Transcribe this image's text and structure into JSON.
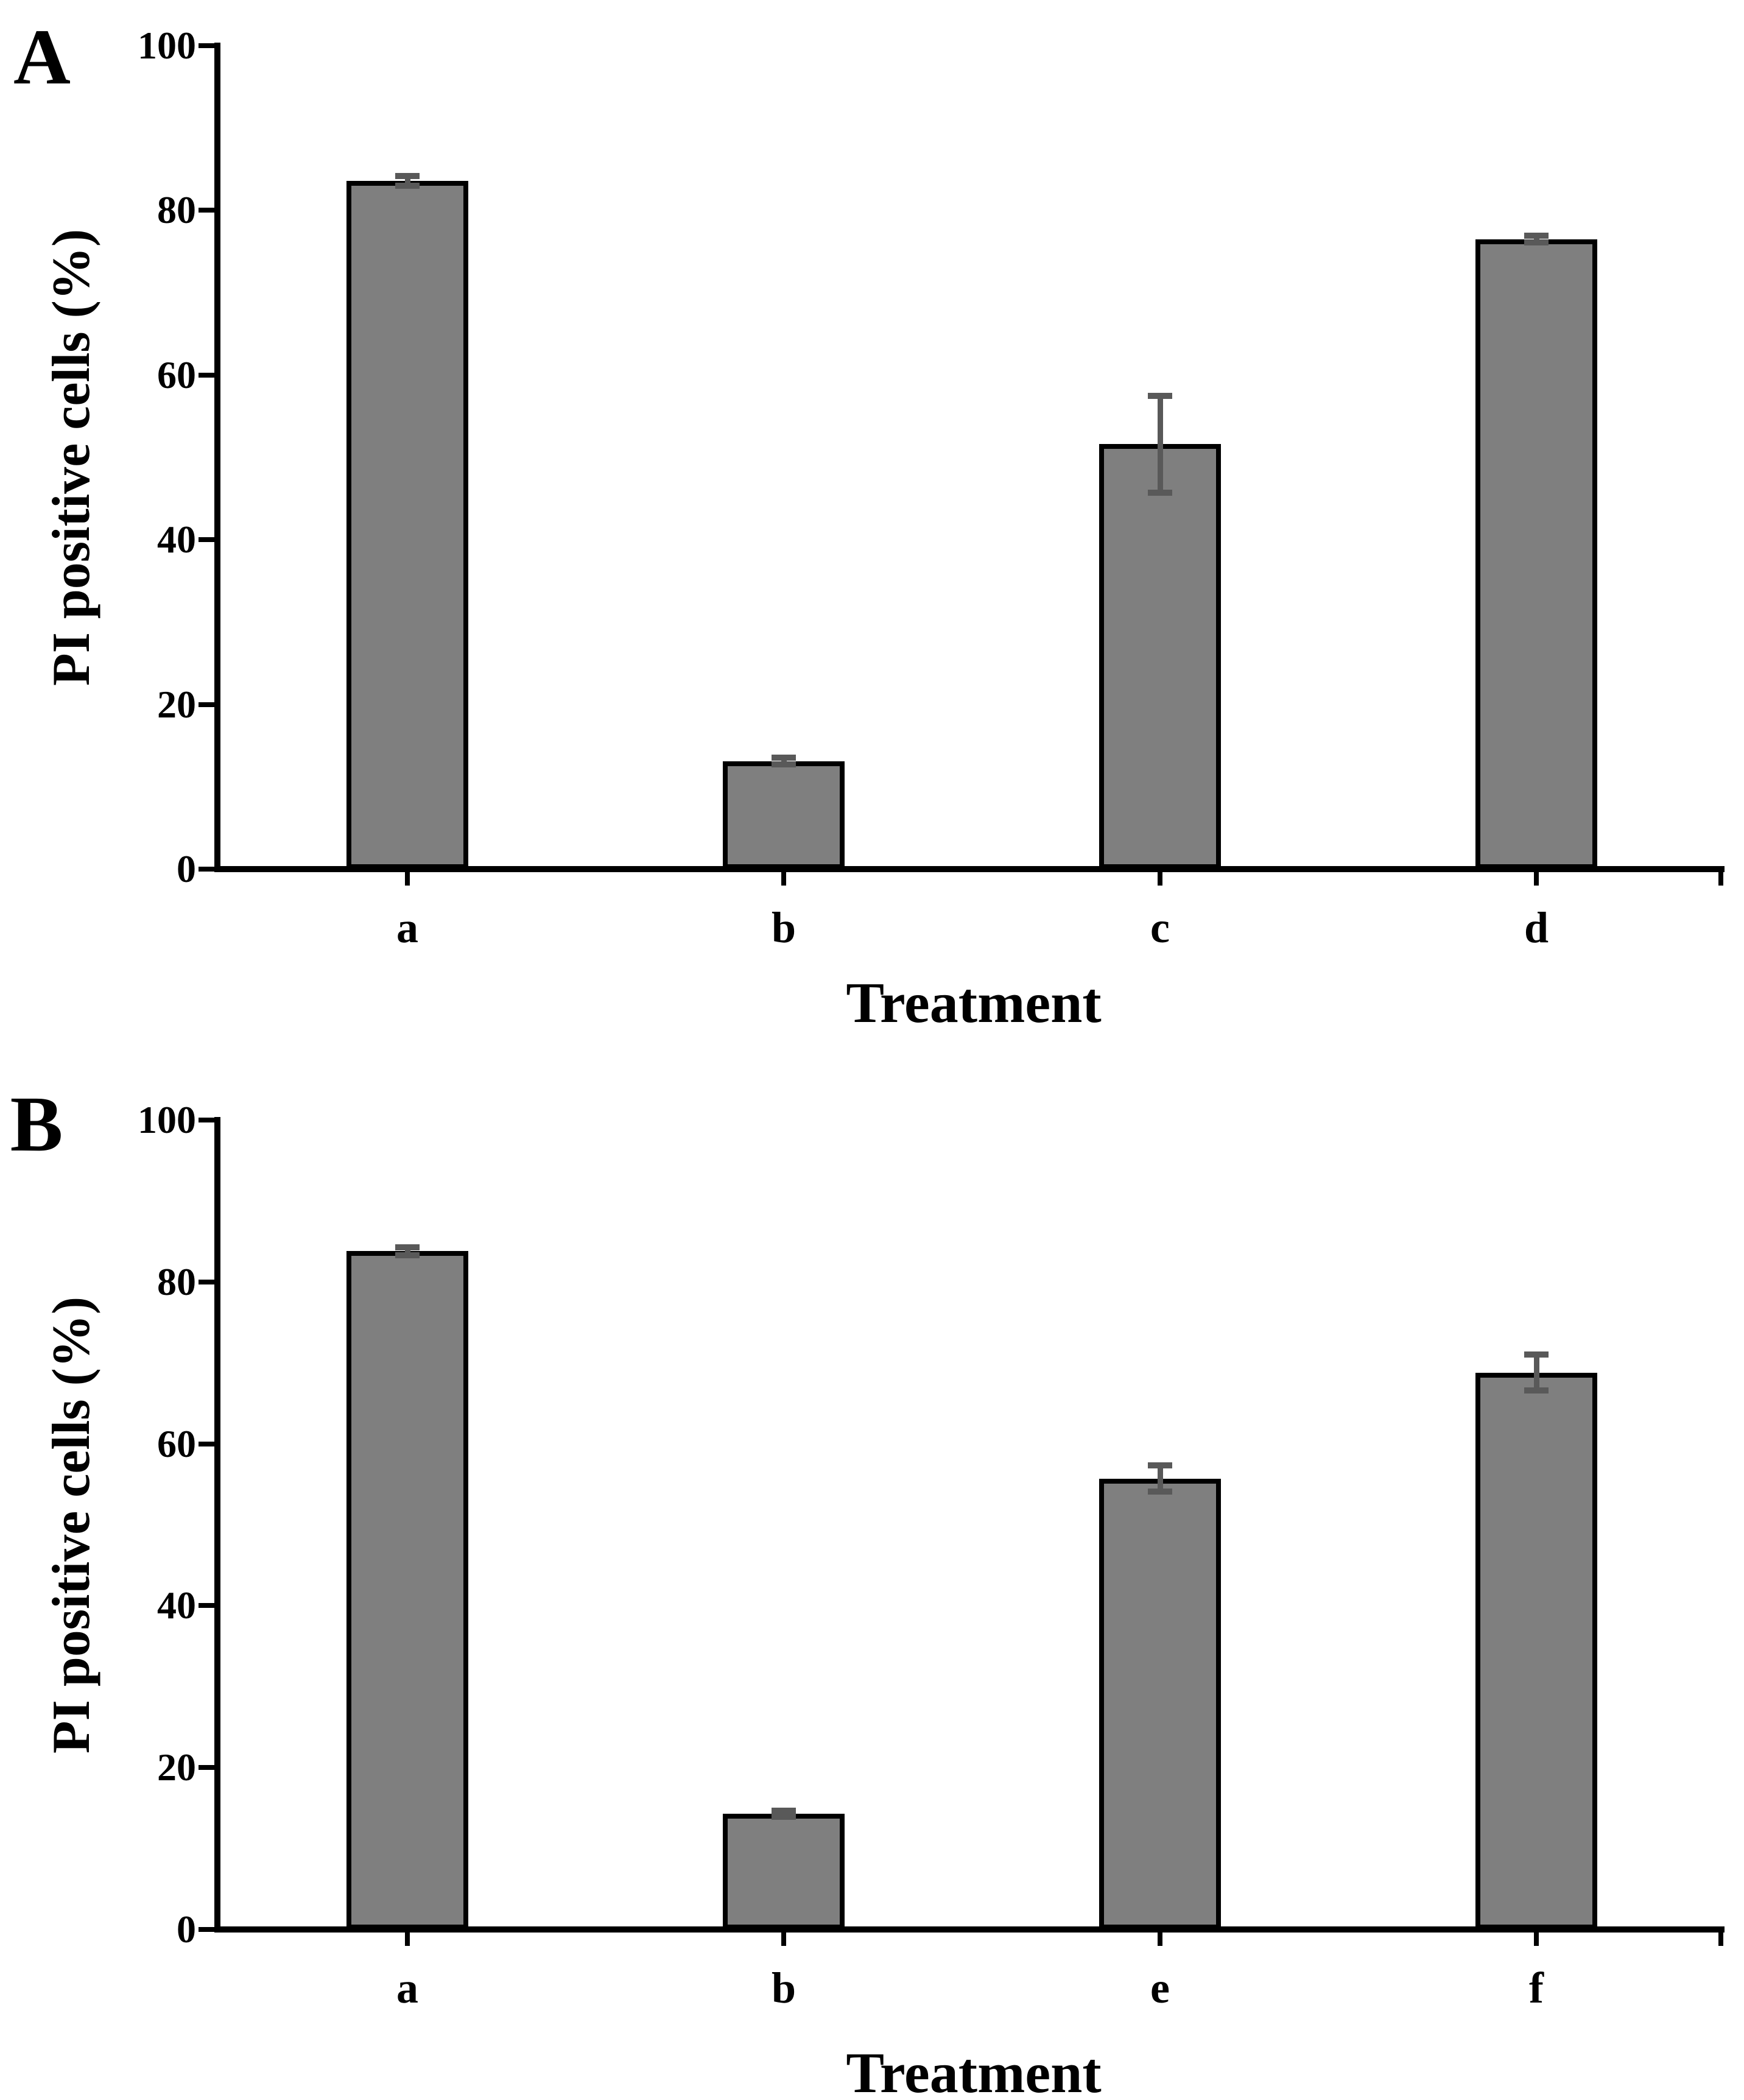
{
  "figure": {
    "background": "#ffffff",
    "bar_fill_color": "#7f7f7f",
    "bar_border_color": "#000000",
    "error_bar_color": "#595959",
    "axis_color": "#000000"
  },
  "chart_data": [
    {
      "type": "bar",
      "panel_label": "A",
      "title": "",
      "xlabel": "Treatment",
      "ylabel": "PI positive cells (%)",
      "categories": [
        "a",
        "b",
        "c",
        "d"
      ],
      "values": [
        83.6,
        13.1,
        51.6,
        76.5
      ],
      "errors": [
        0.6,
        0.4,
        5.9,
        0.4
      ],
      "ylim": [
        0,
        100
      ],
      "yticks": [
        0,
        20,
        40,
        60,
        80,
        100
      ],
      "grid": false,
      "legend": null,
      "bar_color": "#7f7f7f",
      "error_color": "#595959"
    },
    {
      "type": "bar",
      "panel_label": "B",
      "title": "",
      "xlabel": "Treatment",
      "ylabel": "PI positive cells (%)",
      "categories": [
        "a",
        "b",
        "e",
        "f"
      ],
      "values": [
        83.8,
        14.3,
        55.7,
        68.8
      ],
      "errors": [
        0.5,
        0.4,
        1.6,
        2.2
      ],
      "ylim": [
        0,
        100
      ],
      "yticks": [
        0,
        20,
        40,
        60,
        80,
        100
      ],
      "grid": false,
      "legend": null,
      "bar_color": "#7f7f7f",
      "error_color": "#595959"
    }
  ]
}
